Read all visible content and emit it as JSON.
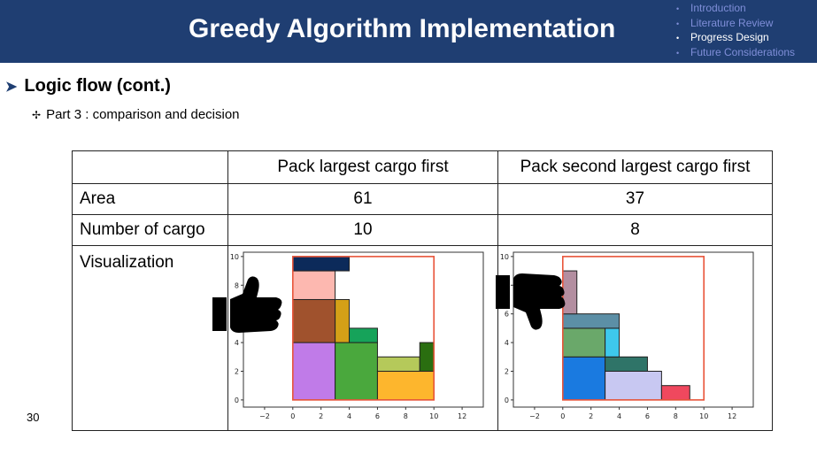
{
  "slide": {
    "title": "Greedy Algorithm Implementation",
    "nav": [
      {
        "label": "Introduction",
        "active": false
      },
      {
        "label": "Literature Review",
        "active": false
      },
      {
        "label": "Progress Design",
        "active": true
      },
      {
        "label": "Future Considerations",
        "active": false
      }
    ],
    "heading": "Logic flow (cont.)",
    "subpoint": "Part 3 : comparison and decision",
    "page_number": "30"
  },
  "table": {
    "columns": [
      "",
      "Pack largest cargo first",
      "Pack second largest cargo first"
    ],
    "rows": [
      {
        "label": "Area",
        "values": [
          "61",
          "37"
        ]
      },
      {
        "label": "Number of cargo",
        "values": [
          "10",
          "8"
        ]
      }
    ],
    "viz_label": "Visualization"
  },
  "icons": {
    "left": "thumbs-up-icon",
    "right": "thumbs-down-icon"
  },
  "chart_data": [
    {
      "type": "rectangles",
      "x_ticks": [
        -2,
        0,
        2,
        4,
        6,
        8,
        10,
        12
      ],
      "y_ticks": [
        0,
        2,
        4,
        6,
        8,
        10
      ],
      "xlim": [
        -3.5,
        13.5
      ],
      "ylim": [
        -0.5,
        10.3
      ],
      "container": {
        "x": 0,
        "y": 0,
        "w": 10,
        "h": 10,
        "color": "#e8553a"
      },
      "boxes": [
        {
          "x": 0,
          "y": 0,
          "w": 3,
          "h": 4,
          "color": "#c07be8"
        },
        {
          "x": 3,
          "y": 0,
          "w": 3,
          "h": 4,
          "color": "#4aa83d"
        },
        {
          "x": 6,
          "y": 0,
          "w": 4,
          "h": 2,
          "color": "#fdb62d"
        },
        {
          "x": 0,
          "y": 4,
          "w": 3,
          "h": 3,
          "color": "#a0522d"
        },
        {
          "x": 3,
          "y": 4,
          "w": 1,
          "h": 3,
          "color": "#d4a017"
        },
        {
          "x": 4,
          "y": 4,
          "w": 2,
          "h": 1,
          "color": "#16a35a"
        },
        {
          "x": 6,
          "y": 2,
          "w": 3,
          "h": 1,
          "color": "#b5c95a"
        },
        {
          "x": 9,
          "y": 2,
          "w": 1,
          "h": 2,
          "color": "#2a6e10"
        },
        {
          "x": 0,
          "y": 7,
          "w": 3,
          "h": 2,
          "color": "#fdb8b0"
        },
        {
          "x": 0,
          "y": 9,
          "w": 4,
          "h": 1,
          "color": "#0c2a5a"
        }
      ]
    },
    {
      "type": "rectangles",
      "x_ticks": [
        -2,
        0,
        2,
        4,
        6,
        8,
        10,
        12
      ],
      "y_ticks": [
        0,
        2,
        4,
        6,
        8,
        10
      ],
      "xlim": [
        -3.5,
        13.5
      ],
      "ylim": [
        -0.5,
        10.3
      ],
      "container": {
        "x": 0,
        "y": 0,
        "w": 10,
        "h": 10,
        "color": "#e8553a"
      },
      "boxes": [
        {
          "x": 0,
          "y": 0,
          "w": 3,
          "h": 3,
          "color": "#1a7ae0"
        },
        {
          "x": 3,
          "y": 0,
          "w": 4,
          "h": 2,
          "color": "#c8c8f2"
        },
        {
          "x": 7,
          "y": 0,
          "w": 2,
          "h": 1,
          "color": "#f0485e"
        },
        {
          "x": 3,
          "y": 2,
          "w": 3,
          "h": 1,
          "color": "#2f7468"
        },
        {
          "x": 0,
          "y": 3,
          "w": 3,
          "h": 2,
          "color": "#6aa86a"
        },
        {
          "x": 3,
          "y": 3,
          "w": 1,
          "h": 2,
          "color": "#3ec8ec"
        },
        {
          "x": 0,
          "y": 5,
          "w": 4,
          "h": 1,
          "color": "#5c8fa6"
        },
        {
          "x": 0,
          "y": 6,
          "w": 1,
          "h": 3,
          "color": "#b38ea0"
        }
      ]
    }
  ]
}
